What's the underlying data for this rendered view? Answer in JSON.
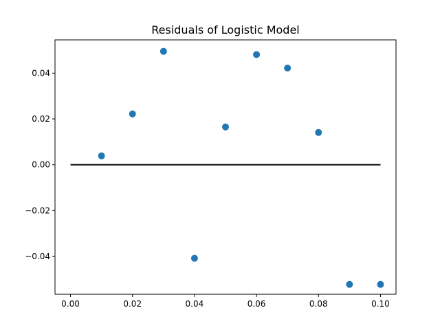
{
  "chart_data": {
    "type": "scatter",
    "title": "Residuals of Logistic Model",
    "xlabel": "",
    "ylabel": "",
    "xlim": [
      -0.005,
      0.105
    ],
    "ylim": [
      -0.0565,
      0.0545
    ],
    "x_ticks": [
      0.0,
      0.02,
      0.04,
      0.06,
      0.08,
      0.1
    ],
    "x_tick_labels": [
      "0.00",
      "0.02",
      "0.04",
      "0.06",
      "0.08",
      "0.10"
    ],
    "y_ticks": [
      -0.04,
      -0.02,
      0.0,
      0.02,
      0.04
    ],
    "y_tick_labels": [
      "−0.04",
      "−0.02",
      "0.00",
      "0.02",
      "0.04"
    ],
    "grid": false,
    "series": [
      {
        "type": "scatter",
        "color": "#1f77b4",
        "x": [
          0.01,
          0.02,
          0.03,
          0.04,
          0.05,
          0.06,
          0.07,
          0.08,
          0.09,
          0.1
        ],
        "y": [
          0.0039,
          0.0222,
          0.0495,
          -0.0408,
          0.0165,
          0.0481,
          0.0422,
          0.0141,
          -0.0522,
          -0.0522
        ]
      },
      {
        "type": "line",
        "color": "#000000",
        "x": [
          0.0,
          0.1
        ],
        "y": [
          0.0,
          0.0
        ]
      }
    ]
  }
}
